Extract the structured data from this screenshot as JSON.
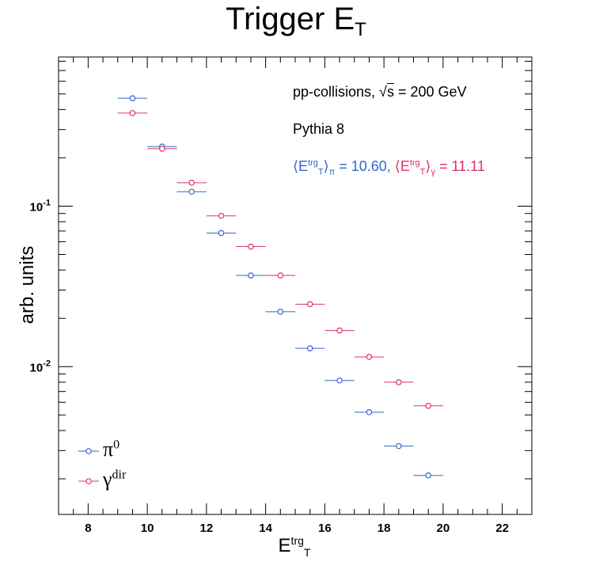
{
  "chart_data": {
    "type": "scatter",
    "title": "Trigger E",
    "title_sub": "T",
    "xlabel": "E",
    "xlabel_sup": "trg",
    "xlabel_sub": "T",
    "ylabel": "arb. units",
    "xlim": [
      7,
      23
    ],
    "ylim": [
      0.0012,
      0.85
    ],
    "y_scale": "log",
    "x_ticks": [
      "8",
      "10",
      "12",
      "14",
      "16",
      "18",
      "20",
      "22"
    ],
    "y_ticks": [
      {
        "value": 0.1,
        "label": "10",
        "exp": "-1"
      },
      {
        "value": 0.01,
        "label": "10",
        "exp": "-2"
      }
    ],
    "legend_position": "bottom-left",
    "series": [
      {
        "name": "π",
        "name_sup": "0",
        "color": "#3366cc",
        "x": [
          9.5,
          10.5,
          11.5,
          12.5,
          13.5,
          14.5,
          15.5,
          16.5,
          17.5,
          18.5,
          19.5
        ],
        "xerr": 0.5,
        "y": [
          0.47,
          0.235,
          0.123,
          0.068,
          0.037,
          0.022,
          0.013,
          0.0082,
          0.0052,
          0.0032,
          0.0021
        ]
      },
      {
        "name": "γ",
        "name_sup": "dir",
        "color": "#dd3366",
        "x": [
          9.5,
          10.5,
          11.5,
          12.5,
          13.5,
          14.5,
          15.5,
          16.5,
          17.5,
          18.5,
          19.5
        ],
        "xerr": 0.5,
        "y": [
          0.38,
          0.228,
          0.14,
          0.087,
          0.056,
          0.037,
          0.0245,
          0.0168,
          0.0115,
          0.008,
          0.0057
        ]
      }
    ],
    "annotations": {
      "collisions_prefix": "pp-collisions, ",
      "sqrt_symbol": "√",
      "sqrt_arg": "s",
      "energy": " = 200 GeV",
      "generator": "Pythia 8",
      "mean_pi_open": "⟨E",
      "mean_sup": "trg",
      "mean_sub_T": "T",
      "mean_pi_close": "⟩",
      "mean_pi_sub": "π",
      "mean_pi_value": " = 10.60, ",
      "mean_gamma_open": "⟨E",
      "mean_gamma_close": "⟩",
      "mean_gamma_sub": "γ",
      "mean_gamma_value": " = 11.11"
    }
  }
}
